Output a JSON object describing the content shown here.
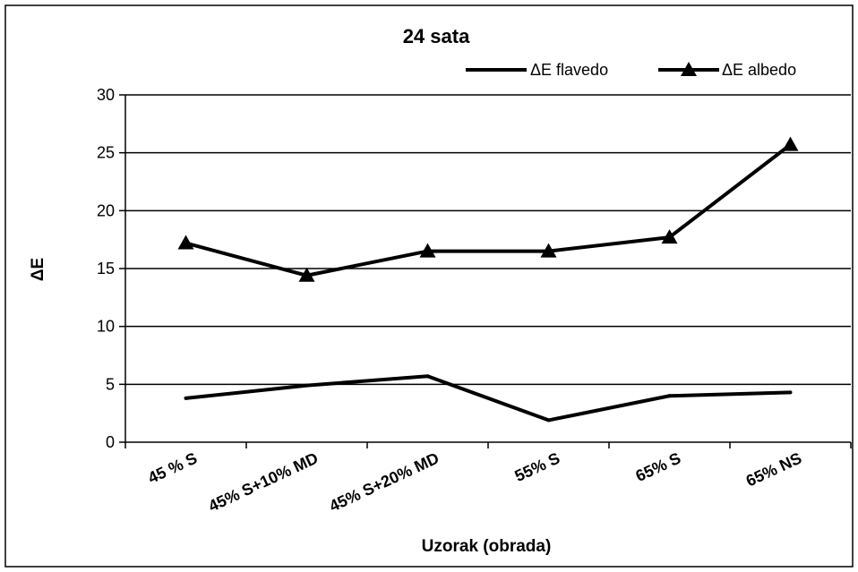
{
  "chart_data": {
    "type": "line",
    "title": "24 sata",
    "xlabel": "Uzorak (obrada)",
    "ylabel": "ΔE",
    "categories": [
      "45 % S",
      "45% S+10% MD",
      "45% S+20% MD",
      "55% S",
      "65% S",
      "65% NS"
    ],
    "ylim": [
      0,
      30
    ],
    "yticks": [
      0,
      5,
      10,
      15,
      20,
      25,
      30
    ],
    "grid": true,
    "legend_position": "top-right",
    "series": [
      {
        "name": "ΔE flavedo",
        "marker": "none",
        "values": [
          3.8,
          4.9,
          5.7,
          1.9,
          4.0,
          4.3
        ]
      },
      {
        "name": "ΔE albedo",
        "marker": "triangle",
        "values": [
          17.2,
          14.4,
          16.5,
          16.5,
          17.7,
          25.7
        ]
      }
    ],
    "line_color": "#000000"
  }
}
